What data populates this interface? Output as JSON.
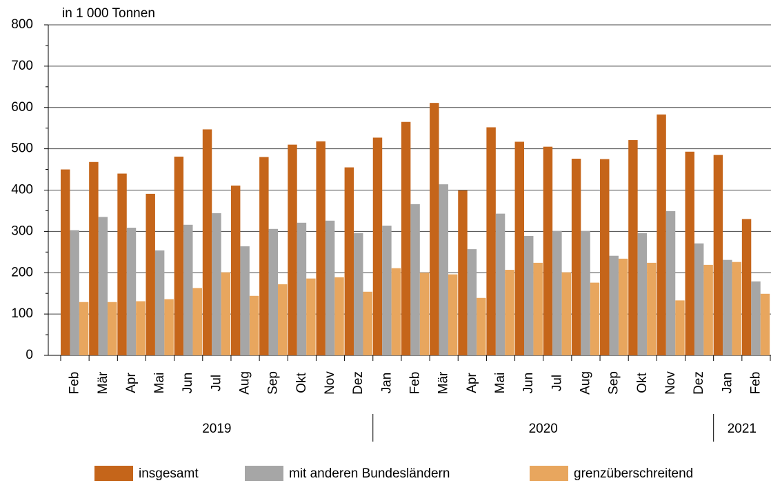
{
  "chart_data": {
    "type": "bar",
    "y_label": "in 1 000 Tonnen",
    "category_groups": [
      {
        "label": "2019",
        "categories": [
          "Feb",
          "Mär",
          "Apr",
          "Mai",
          "Jun",
          "Jul",
          "Aug",
          "Sep",
          "Okt",
          "Nov",
          "Dez"
        ]
      },
      {
        "label": "2020",
        "categories": [
          "Jan",
          "Feb",
          "Mär",
          "Apr",
          "Mai",
          "Jun",
          "Jul",
          "Aug",
          "Sep",
          "Okt",
          "Nov",
          "Dez"
        ]
      },
      {
        "label": "2021",
        "categories": [
          "Jan",
          "Feb"
        ]
      }
    ],
    "series": [
      {
        "name": "insgesamt",
        "color": "#c5651a",
        "values": [
          450,
          468,
          440,
          391,
          481,
          547,
          411,
          480,
          510,
          518,
          455,
          527,
          565,
          611,
          399,
          552,
          517,
          505,
          476,
          475,
          521,
          583,
          493,
          485,
          330
        ]
      },
      {
        "name": "mit anderen Bundesländern",
        "color": "#a6a6a6",
        "values": [
          303,
          335,
          309,
          254,
          316,
          344,
          264,
          306,
          321,
          326,
          296,
          314,
          366,
          414,
          257,
          343,
          289,
          301,
          301,
          241,
          296,
          349,
          271,
          231,
          179
        ]
      },
      {
        "name": "grenzüberschreitend",
        "color": "#e8a65e",
        "values": [
          129,
          129,
          131,
          136,
          163,
          201,
          144,
          172,
          186,
          189,
          154,
          211,
          200,
          196,
          139,
          207,
          224,
          201,
          176,
          234,
          224,
          133,
          219,
          226,
          149
        ]
      }
    ],
    "ylim": [
      0,
      800
    ],
    "yticks": [
      0,
      100,
      200,
      300,
      400,
      500,
      600,
      700,
      800
    ],
    "grid": true,
    "legend": "bottom"
  }
}
